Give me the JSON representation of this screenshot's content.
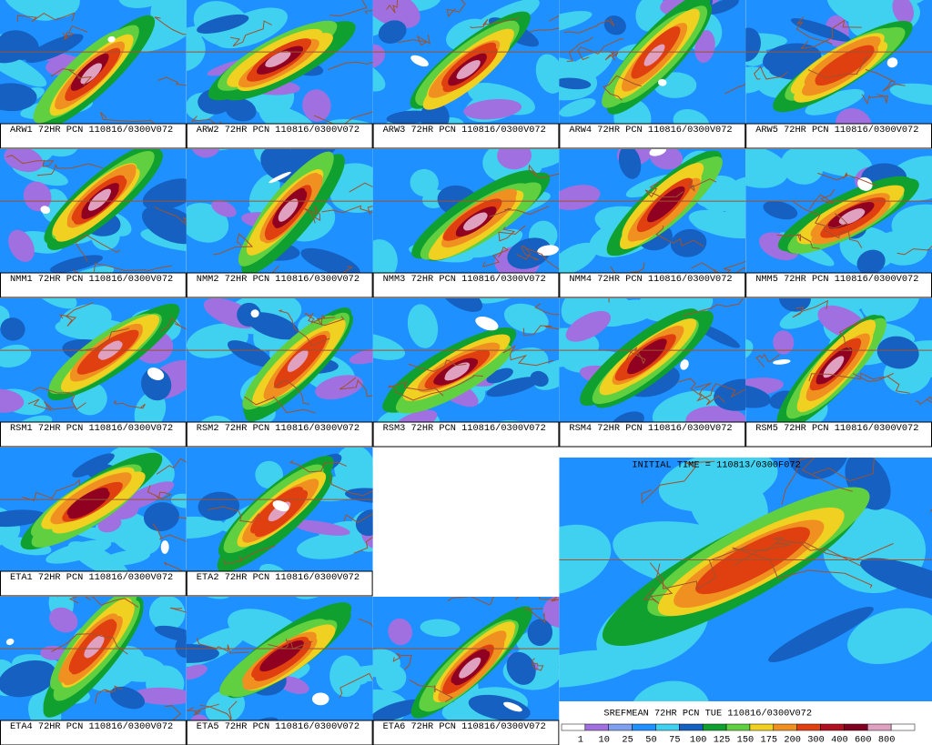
{
  "panels": [
    {
      "label": "ARW1 72HR PCN 110816/0300V072"
    },
    {
      "label": "ARW2 72HR PCN 110816/0300V072"
    },
    {
      "label": "ARW3 72HR PCN 110816/0300V072"
    },
    {
      "label": "ARW4 72HR PCN 110816/0300V072"
    },
    {
      "label": "ARW5 72HR PCN 110816/0300V072"
    },
    {
      "label": "NMM1 72HR PCN 110816/0300V072"
    },
    {
      "label": "NMM2 72HR PCN 110816/0300V072"
    },
    {
      "label": "NMM3 72HR PCN 110816/0300V072"
    },
    {
      "label": "NMM4 72HR PCN 110816/0300V072"
    },
    {
      "label": "NMM5 72HR PCN 110816/0300V072"
    },
    {
      "label": "RSM1 72HR PCN 110816/0300V072"
    },
    {
      "label": "RSM2 72HR PCN 110816/0300V072"
    },
    {
      "label": "RSM3 72HR PCN 110816/0300V072"
    },
    {
      "label": "RSM4 72HR PCN 110816/0300V072"
    },
    {
      "label": "RSM5 72HR PCN 110816/0300V072"
    },
    {
      "label": "ETA1 72HR PCN 110816/0300V072"
    },
    {
      "label": "ETA2 72HR PCN 110816/0300V072"
    },
    {
      "label": "ETA4 72HR PCN 110816/0300V072"
    },
    {
      "label": "ETA5 72HR PCN 110816/0300V072"
    },
    {
      "label": "ETA6 72HR PCN 110816/0300V072"
    }
  ],
  "mean_panel": {
    "header": "INITIAL TIME = 110813/0300F072",
    "footer": "SREFMEAN 72HR PCN TUE 110816/0300V072",
    "legend": {
      "levels": [
        1,
        10,
        25,
        50,
        75,
        100,
        125,
        150,
        175,
        200,
        300,
        400,
        600,
        800
      ],
      "colors": [
        "#ffffff",
        "#a070e0",
        "#7fa0f0",
        "#1e90ff",
        "#40d0f0",
        "#1560c0",
        "#10a030",
        "#60d040",
        "#f0d020",
        "#f09020",
        "#e04010",
        "#b01020",
        "#800020",
        "#e0a0c0",
        "#ffffff"
      ]
    }
  }
}
